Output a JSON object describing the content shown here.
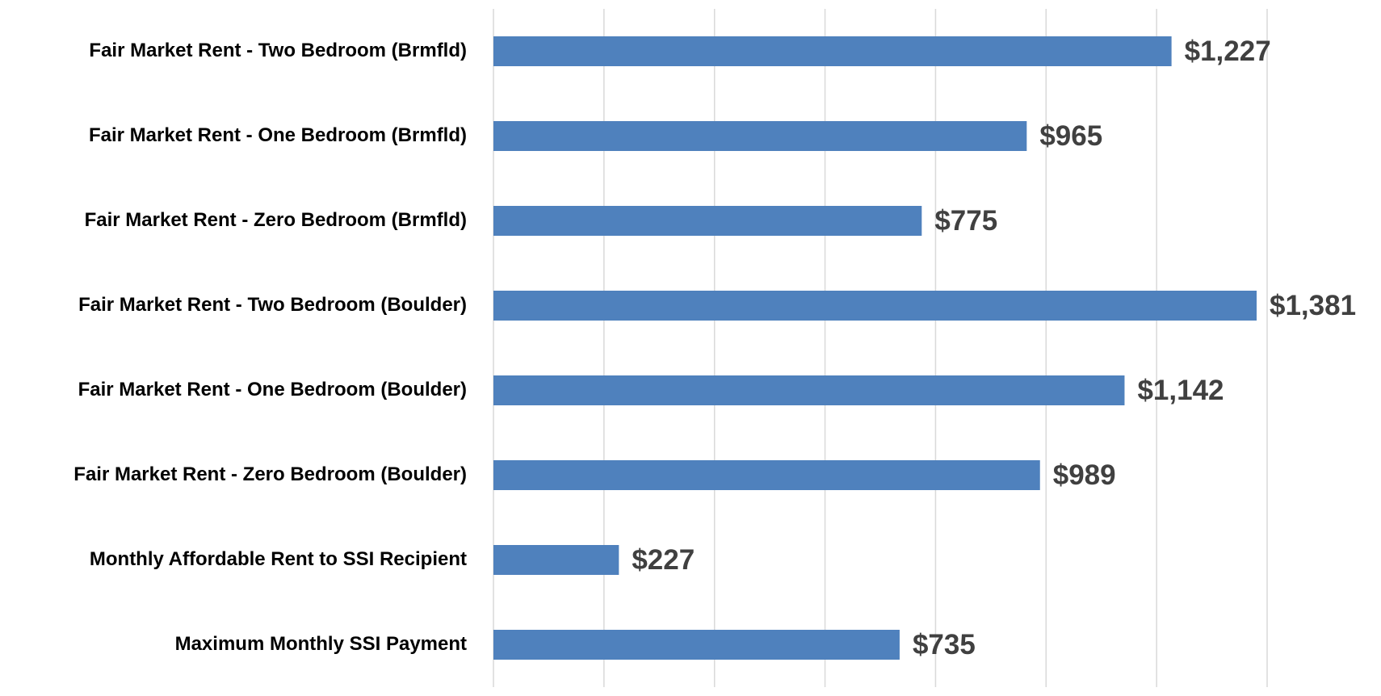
{
  "chart_data": {
    "type": "hbar",
    "categories": [
      "Fair Market Rent - Two Bedroom (Brmfld)",
      "Fair Market Rent - One Bedroom (Brmfld)",
      "Fair Market Rent - Zero Bedroom (Brmfld)",
      "Fair Market Rent - Two Bedroom (Boulder)",
      "Fair Market Rent - One Bedroom (Boulder)",
      "Fair Market Rent - Zero Bedroom (Boulder)",
      "Monthly Affordable Rent to SSI Recipient",
      "Maximum Monthly SSI Payment"
    ],
    "values": [
      1227,
      965,
      775,
      1381,
      1142,
      989,
      227,
      735
    ],
    "value_labels": [
      "$1,227",
      "$965",
      "$775",
      "$1,381",
      "$1,142",
      "$989",
      "$227",
      "$735"
    ],
    "color": "#4f81bd",
    "xlim": [
      0,
      1400
    ],
    "xticks": [
      0,
      200,
      400,
      600,
      800,
      1000,
      1200,
      1400
    ],
    "grid": true
  }
}
